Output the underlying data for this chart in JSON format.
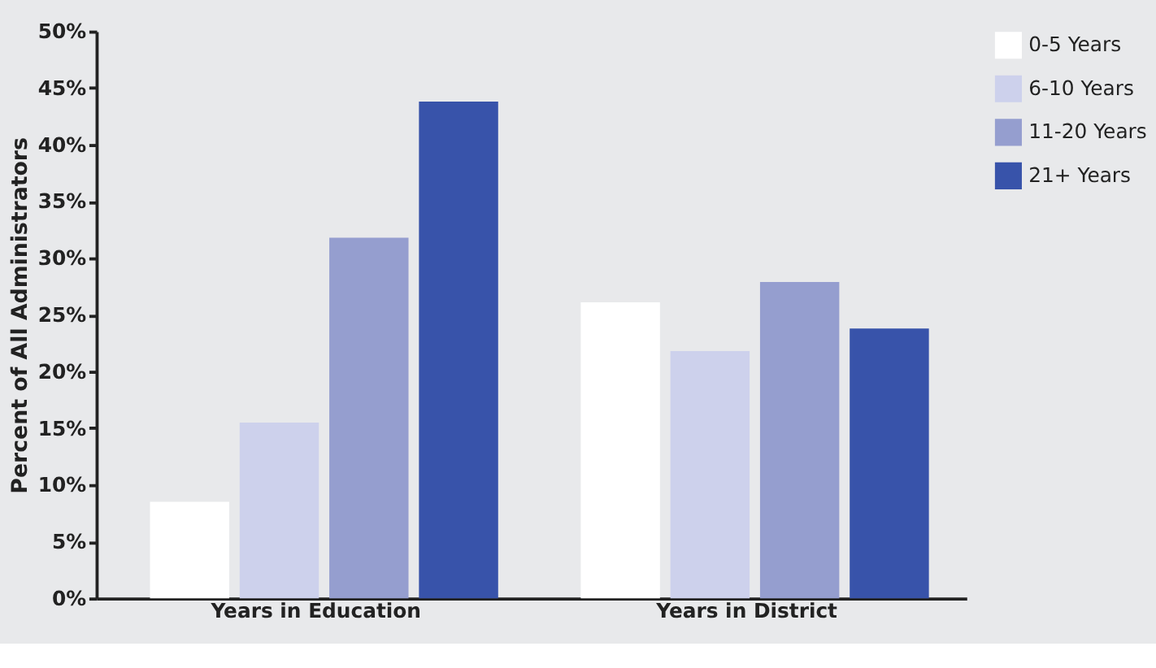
{
  "chart_data": {
    "type": "bar",
    "ylabel": "Percent of All Administrators",
    "categories": [
      "Years in Education",
      "Years in District"
    ],
    "series": [
      {
        "name": "0-5 Years",
        "color": "#ffffff",
        "values": [
          8.5,
          26.1
        ]
      },
      {
        "name": "6-10 Years",
        "color": "#cdd1ec",
        "values": [
          15.5,
          21.8
        ]
      },
      {
        "name": "11-20 Years",
        "color": "#959ecf",
        "values": [
          31.8,
          27.9
        ]
      },
      {
        "name": "21+ Years",
        "color": "#3853aa",
        "values": [
          43.8,
          23.8
        ]
      }
    ],
    "ylim": [
      0,
      50
    ],
    "yticks": [
      {
        "value": 0,
        "label": "0%"
      },
      {
        "value": 5,
        "label": "5%"
      },
      {
        "value": 10,
        "label": "10%"
      },
      {
        "value": 15,
        "label": "15%"
      },
      {
        "value": 20,
        "label": "20%"
      },
      {
        "value": 25,
        "label": "25%"
      },
      {
        "value": 30,
        "label": "30%"
      },
      {
        "value": 35,
        "label": "35%"
      },
      {
        "value": 40,
        "label": "40%"
      },
      {
        "value": 45,
        "label": "45%"
      },
      {
        "value": 50,
        "label": "50%"
      }
    ],
    "grid": false,
    "legend": "right"
  }
}
